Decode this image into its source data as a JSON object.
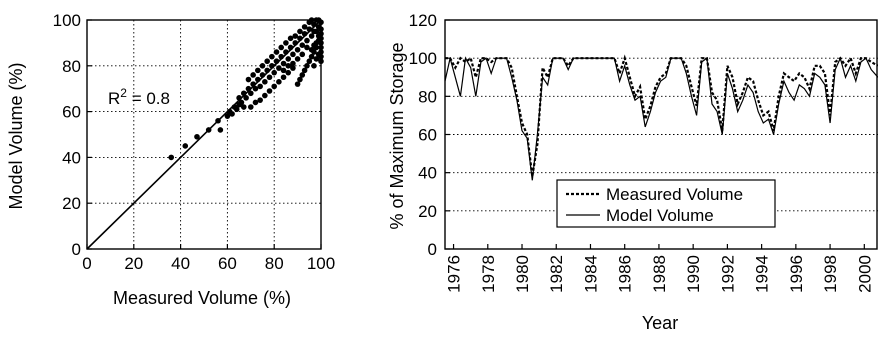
{
  "chart_data": [
    {
      "type": "scatter",
      "xlabel": "Measured Volume (%)",
      "ylabel": "Model Volume (%)",
      "xlim": [
        0,
        100
      ],
      "ylim": [
        0,
        100
      ],
      "xticks": [
        "0",
        "20",
        "40",
        "60",
        "80",
        "100"
      ],
      "yticks": [
        "0",
        "20",
        "40",
        "60",
        "80",
        "100"
      ],
      "grid": true,
      "annotation": {
        "prefix": "R",
        "sup": "2",
        "suffix": " = 0.8"
      },
      "one_to_one_line": [
        [
          0,
          0
        ],
        [
          100,
          100
        ]
      ],
      "points": [
        [
          36,
          40
        ],
        [
          42,
          45
        ],
        [
          47,
          49
        ],
        [
          52,
          52
        ],
        [
          56,
          56
        ],
        [
          57,
          52
        ],
        [
          60,
          58
        ],
        [
          61,
          60
        ],
        [
          62,
          59
        ],
        [
          63,
          62
        ],
        [
          64,
          61
        ],
        [
          65,
          63
        ],
        [
          66,
          64
        ],
        [
          67,
          62
        ],
        [
          68,
          66
        ],
        [
          69,
          70
        ],
        [
          70,
          68
        ],
        [
          71,
          72
        ],
        [
          72,
          70
        ],
        [
          73,
          74
        ],
        [
          74,
          71
        ],
        [
          75,
          76
        ],
        [
          76,
          73
        ],
        [
          77,
          78
        ],
        [
          78,
          75
        ],
        [
          79,
          80
        ],
        [
          80,
          77
        ],
        [
          81,
          82
        ],
        [
          82,
          79
        ],
        [
          83,
          84
        ],
        [
          84,
          81
        ],
        [
          85,
          86
        ],
        [
          86,
          83
        ],
        [
          87,
          88
        ],
        [
          88,
          85
        ],
        [
          89,
          90
        ],
        [
          90,
          87
        ],
        [
          91,
          92
        ],
        [
          92,
          89
        ],
        [
          93,
          94
        ],
        [
          94,
          91
        ],
        [
          95,
          96
        ],
        [
          96,
          93
        ],
        [
          97,
          98
        ],
        [
          98,
          95
        ],
        [
          99,
          97
        ],
        [
          100,
          99
        ],
        [
          100,
          96
        ],
        [
          100,
          94
        ],
        [
          100,
          92
        ],
        [
          100,
          90
        ],
        [
          100,
          88
        ],
        [
          100,
          86
        ],
        [
          100,
          84
        ],
        [
          99,
          91
        ],
        [
          98,
          88
        ],
        [
          97,
          86
        ],
        [
          96,
          84
        ],
        [
          95,
          82
        ],
        [
          94,
          80
        ],
        [
          93,
          78
        ],
        [
          92,
          76
        ],
        [
          91,
          74
        ],
        [
          90,
          72
        ],
        [
          88,
          79
        ],
        [
          86,
          77
        ],
        [
          84,
          75
        ],
        [
          82,
          73
        ],
        [
          80,
          71
        ],
        [
          78,
          69
        ],
        [
          76,
          67
        ],
        [
          74,
          65
        ],
        [
          72,
          64
        ],
        [
          70,
          62
        ],
        [
          85,
          90
        ],
        [
          87,
          92
        ],
        [
          89,
          93
        ],
        [
          91,
          95
        ],
        [
          93,
          97
        ],
        [
          95,
          99
        ],
        [
          83,
          88
        ],
        [
          81,
          86
        ],
        [
          79,
          84
        ],
        [
          77,
          82
        ],
        [
          75,
          80
        ],
        [
          73,
          78
        ],
        [
          71,
          76
        ],
        [
          69,
          74
        ],
        [
          67,
          68
        ],
        [
          65,
          66
        ],
        [
          96,
          100
        ],
        [
          98,
          100
        ],
        [
          99,
          100
        ],
        [
          97,
          95
        ],
        [
          94,
          88
        ],
        [
          92,
          85
        ],
        [
          90,
          83
        ],
        [
          88,
          81
        ],
        [
          86,
          80
        ],
        [
          84,
          78
        ],
        [
          99,
          93
        ],
        [
          98,
          90
        ],
        [
          97,
          89
        ],
        [
          96,
          87
        ],
        [
          100,
          82
        ],
        [
          99,
          85
        ],
        [
          98,
          83
        ],
        [
          97,
          80
        ]
      ]
    },
    {
      "type": "line",
      "xlabel": "Year",
      "ylabel": "% of Maximum Storage",
      "xlim": [
        1975.5,
        2000.8
      ],
      "ylim": [
        0,
        120
      ],
      "xticks": [
        "1976",
        "1978",
        "1980",
        "1982",
        "1984",
        "1986",
        "1988",
        "1990",
        "1992",
        "1994",
        "1996",
        "1998",
        "2000"
      ],
      "yticks": [
        "0",
        "20",
        "40",
        "60",
        "80",
        "100",
        "120"
      ],
      "grid": "horizontal",
      "legend_position": "bottom-center",
      "series": [
        {
          "name": "Measured Volume",
          "style": "dashed",
          "x": [
            1975.5,
            1975.8,
            1976.1,
            1976.4,
            1976.7,
            1977.0,
            1977.3,
            1977.6,
            1977.9,
            1978.2,
            1978.5,
            1978.8,
            1979.1,
            1979.4,
            1979.7,
            1980.0,
            1980.3,
            1980.6,
            1980.9,
            1981.2,
            1981.5,
            1981.8,
            1982.1,
            1982.4,
            1982.7,
            1983.0,
            1983.3,
            1983.6,
            1983.9,
            1984.2,
            1984.5,
            1984.8,
            1985.1,
            1985.4,
            1985.7,
            1986.0,
            1986.3,
            1986.6,
            1986.9,
            1987.2,
            1987.5,
            1987.8,
            1988.1,
            1988.4,
            1988.7,
            1989.0,
            1989.3,
            1989.6,
            1989.9,
            1990.2,
            1990.5,
            1990.8,
            1991.1,
            1991.4,
            1991.7,
            1992.0,
            1992.3,
            1992.6,
            1992.9,
            1993.2,
            1993.5,
            1993.8,
            1994.1,
            1994.4,
            1994.7,
            1995.0,
            1995.3,
            1995.6,
            1995.9,
            1996.2,
            1996.5,
            1996.8,
            1997.1,
            1997.4,
            1997.7,
            1998.0,
            1998.3,
            1998.6,
            1998.9,
            1999.2,
            1999.5,
            1999.8,
            2000.1,
            2000.4,
            2000.8
          ],
          "y": [
            100,
            100,
            95,
            100,
            98,
            100,
            90,
            100,
            100,
            98,
            100,
            100,
            100,
            95,
            80,
            66,
            60,
            38,
            55,
            95,
            90,
            100,
            100,
            100,
            96,
            100,
            100,
            100,
            100,
            100,
            100,
            100,
            100,
            100,
            92,
            100,
            90,
            80,
            85,
            68,
            75,
            85,
            90,
            92,
            100,
            100,
            100,
            96,
            85,
            75,
            100,
            100,
            82,
            78,
            62,
            96,
            90,
            76,
            82,
            90,
            88,
            78,
            70,
            72,
            62,
            80,
            92,
            90,
            88,
            92,
            90,
            84,
            96,
            96,
            92,
            70,
            98,
            100,
            96,
            100,
            92,
            100,
            100,
            98,
            96
          ]
        },
        {
          "name": "Model Volume",
          "style": "solid",
          "x": [
            1975.5,
            1975.8,
            1976.1,
            1976.4,
            1976.7,
            1977.0,
            1977.3,
            1977.6,
            1977.9,
            1978.2,
            1978.5,
            1978.8,
            1979.1,
            1979.4,
            1979.7,
            1980.0,
            1980.3,
            1980.6,
            1980.9,
            1981.2,
            1981.5,
            1981.8,
            1982.1,
            1982.4,
            1982.7,
            1983.0,
            1983.3,
            1983.6,
            1983.9,
            1984.2,
            1984.5,
            1984.8,
            1985.1,
            1985.4,
            1985.7,
            1986.0,
            1986.3,
            1986.6,
            1986.9,
            1987.2,
            1987.5,
            1987.8,
            1988.1,
            1988.4,
            1988.7,
            1989.0,
            1989.3,
            1989.6,
            1989.9,
            1990.2,
            1990.5,
            1990.8,
            1991.1,
            1991.4,
            1991.7,
            1992.0,
            1992.3,
            1992.6,
            1992.9,
            1993.2,
            1993.5,
            1993.8,
            1994.1,
            1994.4,
            1994.7,
            1995.0,
            1995.3,
            1995.6,
            1995.9,
            1996.2,
            1996.5,
            1996.8,
            1997.1,
            1997.4,
            1997.7,
            1998.0,
            1998.3,
            1998.6,
            1998.9,
            1999.2,
            1999.5,
            1999.8,
            2000.1,
            2000.4,
            2000.8
          ],
          "y": [
            88,
            100,
            90,
            80,
            100,
            95,
            80,
            98,
            100,
            92,
            100,
            100,
            100,
            90,
            78,
            62,
            58,
            36,
            60,
            90,
            86,
            100,
            100,
            100,
            94,
            100,
            100,
            100,
            100,
            100,
            100,
            100,
            100,
            100,
            88,
            96,
            86,
            78,
            80,
            64,
            72,
            82,
            88,
            90,
            100,
            100,
            100,
            92,
            80,
            70,
            98,
            100,
            76,
            72,
            60,
            92,
            84,
            72,
            78,
            86,
            82,
            72,
            66,
            68,
            60,
            76,
            88,
            82,
            78,
            86,
            84,
            80,
            92,
            90,
            86,
            66,
            94,
            100,
            90,
            96,
            88,
            98,
            100,
            94,
            90
          ]
        }
      ]
    }
  ]
}
